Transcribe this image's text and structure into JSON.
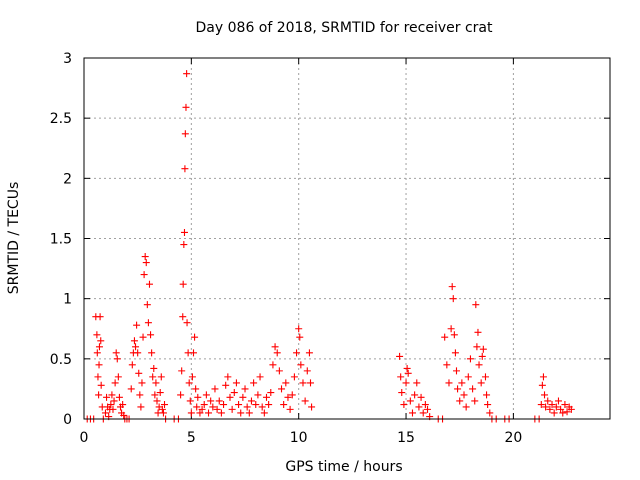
{
  "chart_data": {
    "type": "scatter",
    "title": "Day 086 of 2018, SRMTID for receiver crat",
    "xlabel": "GPS time / hours",
    "ylabel": "SRMTID / TECUs",
    "xlim": [
      0,
      24.5
    ],
    "ylim": [
      0,
      3
    ],
    "xticks": [
      0,
      5,
      10,
      15,
      20
    ],
    "xtick_labels": [
      "0",
      "5",
      "10",
      "15",
      "20"
    ],
    "yticks": [
      0,
      0.5,
      1,
      1.5,
      2,
      2.5,
      3
    ],
    "ytick_labels": [
      "0",
      "0.5",
      "1",
      "1.5",
      "2",
      "2.5",
      "3"
    ],
    "grid": true,
    "marker": "+",
    "color": "#ff0000",
    "series": [
      {
        "name": "SRMTID",
        "points": [
          [
            0.15,
            0.0
          ],
          [
            0.3,
            0.0
          ],
          [
            0.45,
            0.0
          ],
          [
            0.55,
            0.85
          ],
          [
            0.6,
            0.7
          ],
          [
            0.62,
            0.55
          ],
          [
            0.65,
            0.35
          ],
          [
            0.68,
            0.2
          ],
          [
            0.7,
            0.45
          ],
          [
            0.72,
            0.6
          ],
          [
            0.75,
            0.85
          ],
          [
            0.78,
            0.65
          ],
          [
            0.8,
            0.28
          ],
          [
            0.85,
            0.1
          ],
          [
            0.9,
            0.0
          ],
          [
            1.0,
            0.05
          ],
          [
            1.05,
            0.18
          ],
          [
            1.1,
            0.1
          ],
          [
            1.15,
            0.02
          ],
          [
            1.2,
            0.08
          ],
          [
            1.25,
            0.12
          ],
          [
            1.3,
            0.2
          ],
          [
            1.35,
            0.08
          ],
          [
            1.4,
            0.15
          ],
          [
            1.45,
            0.3
          ],
          [
            1.5,
            0.55
          ],
          [
            1.55,
            0.5
          ],
          [
            1.6,
            0.35
          ],
          [
            1.65,
            0.18
          ],
          [
            1.7,
            0.1
          ],
          [
            1.75,
            0.05
          ],
          [
            1.8,
            0.12
          ],
          [
            1.85,
            0.03
          ],
          [
            1.9,
            0.0
          ],
          [
            2.0,
            0.0
          ],
          [
            2.1,
            0.0
          ],
          [
            2.2,
            0.25
          ],
          [
            2.25,
            0.45
          ],
          [
            2.3,
            0.55
          ],
          [
            2.35,
            0.65
          ],
          [
            2.4,
            0.6
          ],
          [
            2.45,
            0.78
          ],
          [
            2.5,
            0.55
          ],
          [
            2.55,
            0.38
          ],
          [
            2.6,
            0.2
          ],
          [
            2.65,
            0.1
          ],
          [
            2.7,
            0.3
          ],
          [
            2.75,
            0.68
          ],
          [
            2.8,
            1.2
          ],
          [
            2.85,
            1.35
          ],
          [
            2.9,
            1.3
          ],
          [
            2.95,
            0.95
          ],
          [
            3.0,
            0.8
          ],
          [
            3.05,
            1.12
          ],
          [
            3.1,
            0.7
          ],
          [
            3.15,
            0.55
          ],
          [
            3.2,
            0.35
          ],
          [
            3.25,
            0.42
          ],
          [
            3.3,
            0.2
          ],
          [
            3.35,
            0.3
          ],
          [
            3.4,
            0.15
          ],
          [
            3.45,
            0.05
          ],
          [
            3.5,
            0.1
          ],
          [
            3.55,
            0.22
          ],
          [
            3.6,
            0.35
          ],
          [
            3.65,
            0.08
          ],
          [
            3.7,
            0.05
          ],
          [
            3.75,
            0.12
          ],
          [
            3.8,
            0.0
          ],
          [
            4.2,
            0.0
          ],
          [
            4.4,
            0.0
          ],
          [
            4.5,
            0.2
          ],
          [
            4.55,
            0.4
          ],
          [
            4.6,
            0.85
          ],
          [
            4.62,
            1.12
          ],
          [
            4.65,
            1.45
          ],
          [
            4.68,
            1.55
          ],
          [
            4.7,
            2.08
          ],
          [
            4.72,
            2.37
          ],
          [
            4.75,
            2.59
          ],
          [
            4.78,
            2.87
          ],
          [
            4.8,
            0.8
          ],
          [
            4.85,
            0.55
          ],
          [
            4.9,
            0.3
          ],
          [
            4.95,
            0.15
          ],
          [
            5.0,
            0.05
          ],
          [
            5.05,
            0.35
          ],
          [
            5.1,
            0.55
          ],
          [
            5.15,
            0.68
          ],
          [
            5.2,
            0.25
          ],
          [
            5.25,
            0.1
          ],
          [
            5.3,
            0.18
          ],
          [
            5.4,
            0.05
          ],
          [
            5.5,
            0.08
          ],
          [
            5.6,
            0.12
          ],
          [
            5.7,
            0.2
          ],
          [
            5.8,
            0.05
          ],
          [
            5.9,
            0.15
          ],
          [
            6.0,
            0.1
          ],
          [
            6.1,
            0.25
          ],
          [
            6.2,
            0.08
          ],
          [
            6.3,
            0.15
          ],
          [
            6.4,
            0.05
          ],
          [
            6.5,
            0.12
          ],
          [
            6.6,
            0.28
          ],
          [
            6.7,
            0.35
          ],
          [
            6.8,
            0.18
          ],
          [
            6.9,
            0.08
          ],
          [
            7.0,
            0.22
          ],
          [
            7.1,
            0.3
          ],
          [
            7.2,
            0.12
          ],
          [
            7.3,
            0.05
          ],
          [
            7.4,
            0.18
          ],
          [
            7.5,
            0.25
          ],
          [
            7.6,
            0.1
          ],
          [
            7.7,
            0.05
          ],
          [
            7.8,
            0.15
          ],
          [
            7.9,
            0.3
          ],
          [
            8.0,
            0.12
          ],
          [
            8.1,
            0.2
          ],
          [
            8.2,
            0.35
          ],
          [
            8.3,
            0.1
          ],
          [
            8.4,
            0.05
          ],
          [
            8.5,
            0.18
          ],
          [
            8.6,
            0.12
          ],
          [
            8.7,
            0.22
          ],
          [
            8.8,
            0.45
          ],
          [
            8.9,
            0.6
          ],
          [
            9.0,
            0.55
          ],
          [
            9.1,
            0.4
          ],
          [
            9.2,
            0.25
          ],
          [
            9.3,
            0.12
          ],
          [
            9.4,
            0.3
          ],
          [
            9.5,
            0.18
          ],
          [
            9.6,
            0.08
          ],
          [
            9.7,
            0.2
          ],
          [
            9.8,
            0.35
          ],
          [
            9.9,
            0.55
          ],
          [
            10.0,
            0.75
          ],
          [
            10.05,
            0.68
          ],
          [
            10.1,
            0.45
          ],
          [
            10.2,
            0.3
          ],
          [
            10.3,
            0.15
          ],
          [
            10.4,
            0.4
          ],
          [
            10.5,
            0.55
          ],
          [
            10.55,
            0.3
          ],
          [
            10.6,
            0.1
          ],
          [
            14.7,
            0.52
          ],
          [
            14.75,
            0.35
          ],
          [
            14.8,
            0.22
          ],
          [
            14.9,
            0.12
          ],
          [
            15.0,
            0.3
          ],
          [
            15.05,
            0.42
          ],
          [
            15.1,
            0.38
          ],
          [
            15.2,
            0.15
          ],
          [
            15.3,
            0.05
          ],
          [
            15.4,
            0.2
          ],
          [
            15.5,
            0.3
          ],
          [
            15.6,
            0.1
          ],
          [
            15.7,
            0.18
          ],
          [
            15.8,
            0.05
          ],
          [
            15.9,
            0.12
          ],
          [
            16.0,
            0.08
          ],
          [
            16.1,
            0.02
          ],
          [
            16.5,
            0.0
          ],
          [
            16.7,
            0.0
          ],
          [
            16.8,
            0.68
          ],
          [
            16.9,
            0.45
          ],
          [
            17.0,
            0.3
          ],
          [
            17.1,
            0.75
          ],
          [
            17.15,
            1.1
          ],
          [
            17.2,
            1.0
          ],
          [
            17.25,
            0.7
          ],
          [
            17.3,
            0.55
          ],
          [
            17.35,
            0.4
          ],
          [
            17.4,
            0.25
          ],
          [
            17.5,
            0.15
          ],
          [
            17.6,
            0.3
          ],
          [
            17.7,
            0.2
          ],
          [
            17.8,
            0.1
          ],
          [
            17.9,
            0.35
          ],
          [
            18.0,
            0.5
          ],
          [
            18.1,
            0.25
          ],
          [
            18.2,
            0.15
          ],
          [
            18.25,
            0.95
          ],
          [
            18.3,
            0.6
          ],
          [
            18.35,
            0.72
          ],
          [
            18.4,
            0.45
          ],
          [
            18.5,
            0.3
          ],
          [
            18.55,
            0.52
          ],
          [
            18.6,
            0.58
          ],
          [
            18.7,
            0.35
          ],
          [
            18.75,
            0.2
          ],
          [
            18.8,
            0.12
          ],
          [
            18.9,
            0.05
          ],
          [
            19.0,
            0.0
          ],
          [
            19.2,
            0.0
          ],
          [
            19.6,
            0.0
          ],
          [
            19.8,
            0.0
          ],
          [
            21.0,
            0.0
          ],
          [
            21.2,
            0.0
          ],
          [
            21.3,
            0.12
          ],
          [
            21.35,
            0.28
          ],
          [
            21.4,
            0.35
          ],
          [
            21.45,
            0.2
          ],
          [
            21.5,
            0.1
          ],
          [
            21.6,
            0.15
          ],
          [
            21.7,
            0.08
          ],
          [
            21.8,
            0.12
          ],
          [
            21.9,
            0.05
          ],
          [
            22.0,
            0.1
          ],
          [
            22.1,
            0.15
          ],
          [
            22.2,
            0.08
          ],
          [
            22.3,
            0.05
          ],
          [
            22.4,
            0.12
          ],
          [
            22.5,
            0.06
          ],
          [
            22.6,
            0.1
          ],
          [
            22.7,
            0.08
          ]
        ]
      }
    ]
  }
}
